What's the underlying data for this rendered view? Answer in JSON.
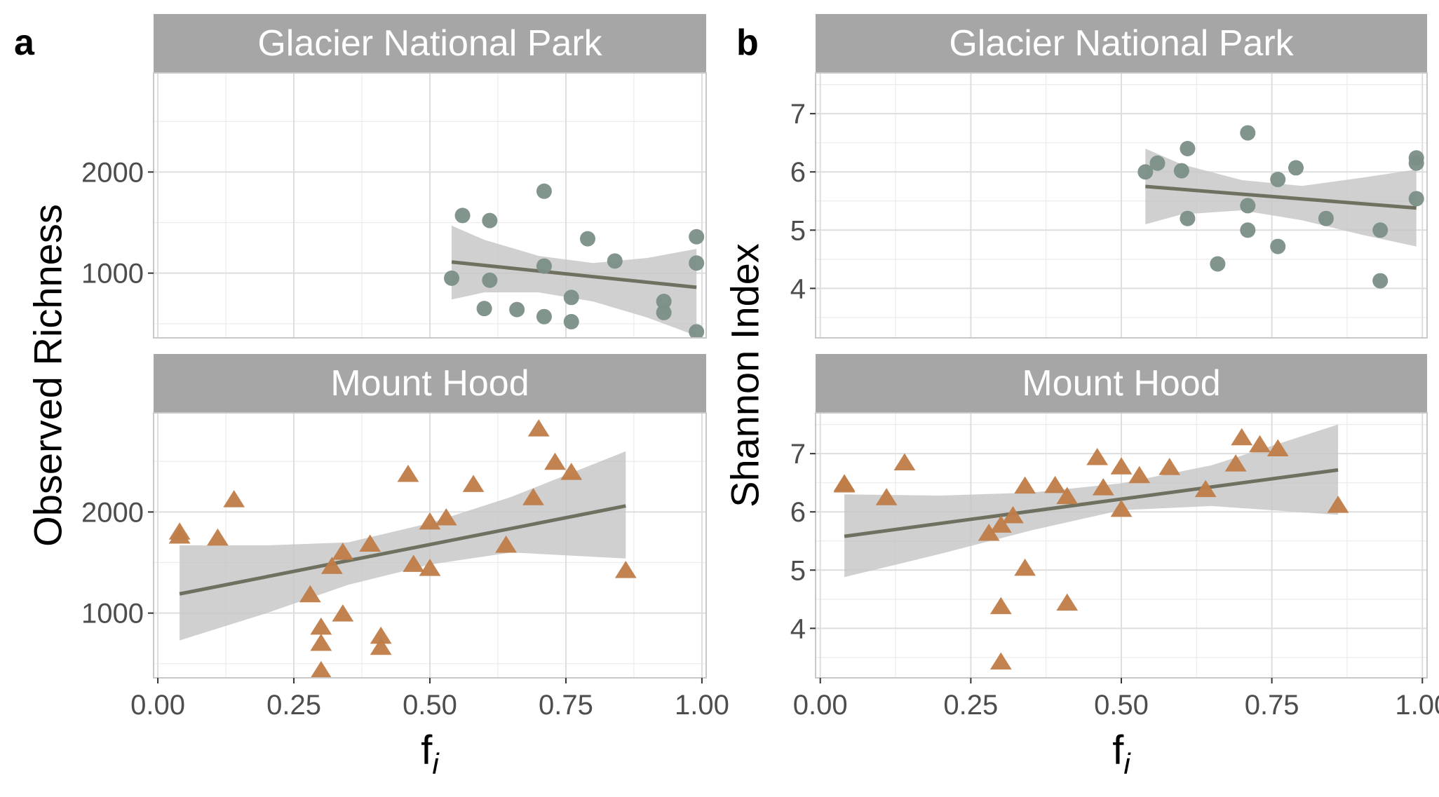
{
  "panel_labels": [
    "a",
    "b"
  ],
  "strip_labels": [
    "Glacier National Park",
    "Mount Hood"
  ],
  "colors": {
    "gnp_points": "#7b8f87",
    "mh_points": "#bf7c48",
    "trend_line": "#6f7060",
    "ribbon": "#c4c4c4",
    "strip_bg": "#a6a6a6",
    "strip_text": "#ffffff",
    "grid": "#dedede",
    "axis_text": "#4d4d4d"
  },
  "chart_data": [
    {
      "type": "scatter",
      "panel": "a",
      "ylabel": "Observed Richness",
      "xlabel": "f_i",
      "xlim": [
        0,
        1
      ],
      "x_ticks": [
        "0.00",
        "0.25",
        "0.50",
        "0.75",
        "1.00"
      ],
      "grid": true,
      "facets": [
        {
          "name": "Glacier National Park",
          "ylim": [
            360,
            2980
          ],
          "y_ticks": [
            1000,
            2000
          ],
          "marker": "circle",
          "points": [
            {
              "x": 0.54,
              "y": 950
            },
            {
              "x": 0.56,
              "y": 1570
            },
            {
              "x": 0.6,
              "y": 650
            },
            {
              "x": 0.61,
              "y": 1520
            },
            {
              "x": 0.61,
              "y": 930
            },
            {
              "x": 0.66,
              "y": 640
            },
            {
              "x": 0.71,
              "y": 1810
            },
            {
              "x": 0.71,
              "y": 1070
            },
            {
              "x": 0.71,
              "y": 570
            },
            {
              "x": 0.76,
              "y": 760
            },
            {
              "x": 0.76,
              "y": 520
            },
            {
              "x": 0.79,
              "y": 1340
            },
            {
              "x": 0.84,
              "y": 1120
            },
            {
              "x": 0.93,
              "y": 720
            },
            {
              "x": 0.93,
              "y": 610
            },
            {
              "x": 0.99,
              "y": 1360
            },
            {
              "x": 0.99,
              "y": 1100
            },
            {
              "x": 0.99,
              "y": 420
            }
          ],
          "trend": {
            "x": [
              0.54,
              0.99
            ],
            "y": [
              1110,
              860
            ]
          },
          "ribbon": {
            "x": [
              0.54,
              0.6,
              0.7,
              0.8,
              0.9,
              0.99
            ],
            "lower": [
              740,
              810,
              810,
              720,
              560,
              380
            ],
            "upper": [
              1470,
              1330,
              1170,
              1100,
              1150,
              1240
            ]
          }
        },
        {
          "name": "Mount Hood",
          "ylim": [
            360,
            2980
          ],
          "y_ticks": [
            1000,
            2000
          ],
          "marker": "triangle",
          "points": [
            {
              "x": 0.04,
              "y": 1800
            },
            {
              "x": 0.04,
              "y": 1760
            },
            {
              "x": 0.11,
              "y": 1740
            },
            {
              "x": 0.14,
              "y": 2120
            },
            {
              "x": 0.28,
              "y": 1180
            },
            {
              "x": 0.3,
              "y": 860
            },
            {
              "x": 0.3,
              "y": 700
            },
            {
              "x": 0.3,
              "y": 430
            },
            {
              "x": 0.32,
              "y": 1460
            },
            {
              "x": 0.34,
              "y": 1600
            },
            {
              "x": 0.34,
              "y": 990
            },
            {
              "x": 0.39,
              "y": 1680
            },
            {
              "x": 0.41,
              "y": 770
            },
            {
              "x": 0.41,
              "y": 660
            },
            {
              "x": 0.46,
              "y": 2370
            },
            {
              "x": 0.47,
              "y": 1480
            },
            {
              "x": 0.5,
              "y": 1900
            },
            {
              "x": 0.5,
              "y": 1440
            },
            {
              "x": 0.53,
              "y": 1940
            },
            {
              "x": 0.58,
              "y": 2270
            },
            {
              "x": 0.64,
              "y": 1670
            },
            {
              "x": 0.69,
              "y": 2140
            },
            {
              "x": 0.7,
              "y": 2820
            },
            {
              "x": 0.73,
              "y": 2490
            },
            {
              "x": 0.76,
              "y": 2390
            },
            {
              "x": 0.86,
              "y": 1420
            }
          ],
          "trend": {
            "x": [
              0.04,
              0.86
            ],
            "y": [
              1190,
              2060
            ]
          },
          "ribbon": {
            "x": [
              0.04,
              0.2,
              0.35,
              0.5,
              0.65,
              0.86
            ],
            "lower": [
              730,
              1000,
              1280,
              1480,
              1600,
              1540
            ],
            "upper": [
              1670,
              1670,
              1700,
              1890,
              2150,
              2600
            ]
          }
        }
      ]
    },
    {
      "type": "scatter",
      "panel": "b",
      "ylabel": "Shannon Index",
      "xlabel": "f_i",
      "xlim": [
        0,
        1
      ],
      "x_ticks": [
        "0.00",
        "0.25",
        "0.50",
        "0.75",
        "1.00"
      ],
      "grid": true,
      "facets": [
        {
          "name": "Glacier National Park",
          "ylim": [
            3.15,
            7.7
          ],
          "y_ticks": [
            4,
            5,
            6,
            7
          ],
          "marker": "circle",
          "points": [
            {
              "x": 0.54,
              "y": 6.0
            },
            {
              "x": 0.56,
              "y": 6.15
            },
            {
              "x": 0.6,
              "y": 6.02
            },
            {
              "x": 0.61,
              "y": 6.4
            },
            {
              "x": 0.61,
              "y": 5.2
            },
            {
              "x": 0.66,
              "y": 4.42
            },
            {
              "x": 0.71,
              "y": 6.67
            },
            {
              "x": 0.71,
              "y": 5.42
            },
            {
              "x": 0.71,
              "y": 5.0
            },
            {
              "x": 0.76,
              "y": 5.87
            },
            {
              "x": 0.76,
              "y": 4.72
            },
            {
              "x": 0.79,
              "y": 6.07
            },
            {
              "x": 0.84,
              "y": 5.2
            },
            {
              "x": 0.93,
              "y": 5.0
            },
            {
              "x": 0.93,
              "y": 4.13
            },
            {
              "x": 0.99,
              "y": 6.24
            },
            {
              "x": 0.99,
              "y": 6.15
            },
            {
              "x": 0.99,
              "y": 5.54
            }
          ],
          "trend": {
            "x": [
              0.54,
              0.99
            ],
            "y": [
              5.75,
              5.38
            ]
          },
          "ribbon": {
            "x": [
              0.54,
              0.6,
              0.7,
              0.8,
              0.9,
              0.99
            ],
            "lower": [
              5.1,
              5.27,
              5.34,
              5.17,
              4.92,
              4.72
            ],
            "upper": [
              6.4,
              6.13,
              5.86,
              5.76,
              5.9,
              6.04
            ]
          }
        },
        {
          "name": "Mount Hood",
          "ylim": [
            3.15,
            7.7
          ],
          "y_ticks": [
            4,
            5,
            6,
            7
          ],
          "marker": "triangle",
          "points": [
            {
              "x": 0.04,
              "y": 6.48
            },
            {
              "x": 0.04,
              "y": 6.46
            },
            {
              "x": 0.11,
              "y": 6.24
            },
            {
              "x": 0.14,
              "y": 6.84
            },
            {
              "x": 0.28,
              "y": 5.63
            },
            {
              "x": 0.3,
              "y": 5.77
            },
            {
              "x": 0.3,
              "y": 4.37
            },
            {
              "x": 0.3,
              "y": 3.42
            },
            {
              "x": 0.32,
              "y": 5.93
            },
            {
              "x": 0.34,
              "y": 6.44
            },
            {
              "x": 0.34,
              "y": 5.03
            },
            {
              "x": 0.39,
              "y": 6.45
            },
            {
              "x": 0.41,
              "y": 6.26
            },
            {
              "x": 0.41,
              "y": 4.43
            },
            {
              "x": 0.46,
              "y": 6.93
            },
            {
              "x": 0.47,
              "y": 6.41
            },
            {
              "x": 0.5,
              "y": 6.77
            },
            {
              "x": 0.5,
              "y": 6.04
            },
            {
              "x": 0.53,
              "y": 6.62
            },
            {
              "x": 0.58,
              "y": 6.76
            },
            {
              "x": 0.64,
              "y": 6.38
            },
            {
              "x": 0.69,
              "y": 6.82
            },
            {
              "x": 0.7,
              "y": 7.27
            },
            {
              "x": 0.73,
              "y": 7.15
            },
            {
              "x": 0.76,
              "y": 7.08
            },
            {
              "x": 0.86,
              "y": 6.11
            }
          ],
          "trend": {
            "x": [
              0.04,
              0.86
            ],
            "y": [
              5.58,
              6.72
            ]
          },
          "ribbon": {
            "x": [
              0.04,
              0.2,
              0.35,
              0.5,
              0.65,
              0.86
            ],
            "lower": [
              4.88,
              5.28,
              5.68,
              6.03,
              6.1,
              5.95
            ],
            "upper": [
              6.3,
              6.28,
              6.33,
              6.49,
              6.8,
              7.5
            ]
          }
        }
      ]
    }
  ]
}
